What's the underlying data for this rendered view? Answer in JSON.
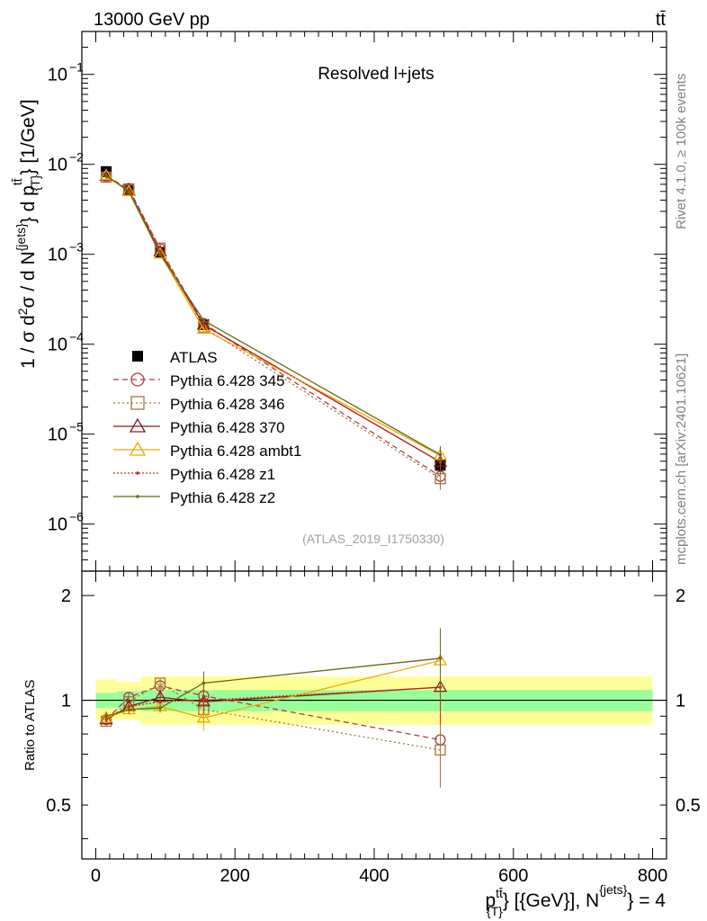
{
  "header": {
    "energy_label": "13000 GeV pp",
    "process_label": "tt̄"
  },
  "side_labels": {
    "rivet": "Rivet 4.1.0, ≥ 100k events",
    "mcplots": "mcplots.cern.ch [arXiv:2401.10621]"
  },
  "chart_data": {
    "type": "line",
    "title": "Resolved l+jets",
    "analysis_id": "(ATLAS_2019_I1750330)",
    "xlabel": "p_T^{tt̄} [GeV], N^{jets} = 4",
    "xlabel_parts": {
      "p": "p",
      "sup": "tt̄",
      "sub": "{T}",
      "mid": "} [{GeV}], N",
      "sup2": "{jets}",
      "end": "} = 4"
    },
    "ylabel": "1 / σ d²σ / d N^{jets} d p_T^{tt̄} [1/GeV]",
    "ratio_ylabel": "Ratio to ATLAS",
    "xlim": [
      -20,
      820
    ],
    "ylim_log": [
      3e-07,
      0.3
    ],
    "ratio_ylim": [
      0.35,
      2.35
    ],
    "x_ticks": [
      0,
      200,
      400,
      600,
      800
    ],
    "y_ticks": [
      {
        "value": 1e-06,
        "label": "10",
        "exp": "−6"
      },
      {
        "value": 1e-05,
        "label": "10",
        "exp": "−5"
      },
      {
        "value": 0.0001,
        "label": "10",
        "exp": "−4"
      },
      {
        "value": 0.001,
        "label": "10",
        "exp": "−3"
      },
      {
        "value": 0.01,
        "label": "10",
        "exp": "−2"
      },
      {
        "value": 0.1,
        "label": "10",
        "exp": "−1"
      }
    ],
    "ratio_ticks": [
      {
        "value": 0.5,
        "label": "0.5"
      },
      {
        "value": 1,
        "label": "1"
      },
      {
        "value": 2,
        "label": "2"
      }
    ],
    "x": [
      15,
      47.5,
      92.5,
      155,
      495
    ],
    "bin_edges": [
      0,
      30,
      65,
      120,
      190,
      800
    ],
    "ratio_band_inner": [
      [
        0.95,
        1.05
      ],
      [
        0.94,
        1.06
      ],
      [
        0.93,
        1.07
      ],
      [
        0.93,
        1.07
      ],
      [
        0.93,
        1.07
      ]
    ],
    "ratio_band_outer": [
      [
        0.88,
        1.15
      ],
      [
        0.88,
        1.13
      ],
      [
        0.85,
        1.17
      ],
      [
        0.85,
        1.17
      ],
      [
        0.85,
        1.17
      ]
    ],
    "reference": {
      "name": "ATLAS",
      "color": "#000000",
      "values": [
        0.0083,
        0.0053,
        0.00105,
        0.000165,
        4.5e-06
      ]
    },
    "series": [
      {
        "name": "Pythia 6.428 345",
        "color": "#b03a48",
        "dash": "6,4",
        "marker": "circle",
        "values": [
          0.0073,
          0.0054,
          0.00115,
          0.00017,
          3.4e-06
        ],
        "ratio": [
          0.88,
          1.02,
          1.1,
          1.03,
          0.77
        ]
      },
      {
        "name": "Pythia 6.428 346",
        "color": "#a07838",
        "dash": "2,3",
        "marker": "square",
        "values": [
          0.0072,
          0.0052,
          0.00117,
          0.000155,
          3.2e-06
        ],
        "ratio": [
          0.87,
          0.99,
          1.12,
          0.94,
          0.72
        ]
      },
      {
        "name": "Pythia 6.428 370",
        "color": "#8b1a1a",
        "dash": "",
        "marker": "triangle",
        "values": [
          0.0074,
          0.0051,
          0.00107,
          0.000164,
          4.9e-06
        ],
        "ratio": [
          0.88,
          0.96,
          1.02,
          0.99,
          1.09
        ]
      },
      {
        "name": "Pythia 6.428 ambt1",
        "color": "#f0a800",
        "dash": "",
        "marker": "triangle",
        "values": [
          0.0075,
          0.005,
          0.00101,
          0.000147,
          5.8e-06
        ],
        "ratio": [
          0.89,
          0.94,
          0.96,
          0.89,
          1.3
        ]
      },
      {
        "name": "Pythia 6.428 z1",
        "color": "#d42a1a",
        "dash": "2,2",
        "marker": "dot",
        "values": [
          0.0074,
          0.0051,
          0.00104,
          0.000165,
          4.9e-06
        ],
        "ratio": [
          0.88,
          0.96,
          0.99,
          1.0,
          1.09
        ]
      },
      {
        "name": "Pythia 6.428 z2",
        "color": "#6b6b10",
        "dash": "",
        "marker": "dot",
        "values": [
          0.0075,
          0.005,
          0.001,
          0.000184,
          5.9e-06
        ],
        "ratio": [
          0.9,
          0.94,
          0.95,
          1.12,
          1.32
        ]
      }
    ]
  }
}
